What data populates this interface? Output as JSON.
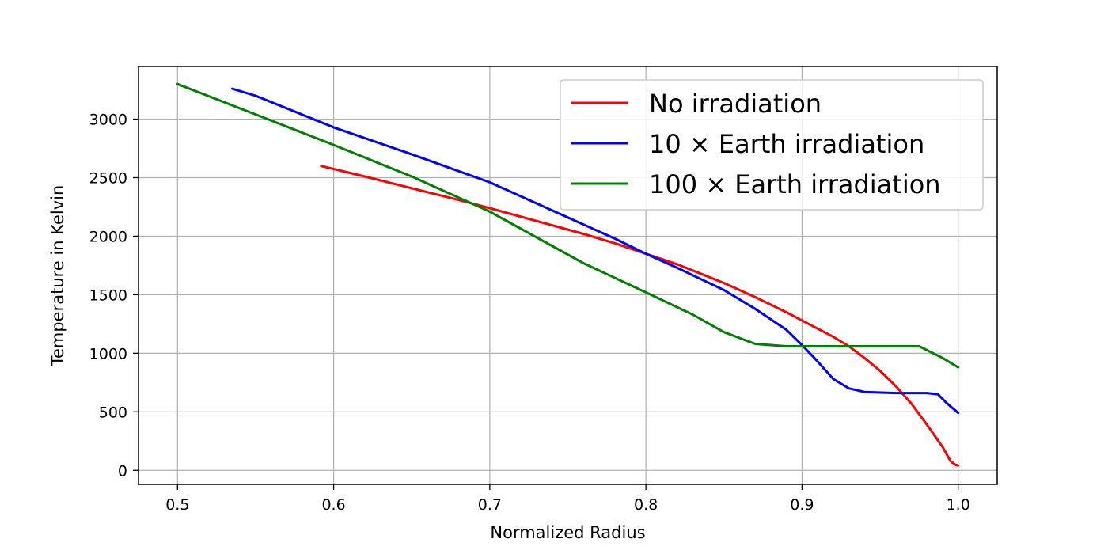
{
  "chart_data": {
    "type": "line",
    "title": "",
    "xlabel": "Normalized Radius",
    "ylabel": "Temperature in Kelvin",
    "xlim": [
      0.475,
      1.025
    ],
    "ylim": [
      -120,
      3450
    ],
    "grid": true,
    "legend_position": "top-right",
    "x_ticks": [
      0.5,
      0.6,
      0.7,
      0.8,
      0.9,
      1.0
    ],
    "x_tick_labels": [
      "0.5",
      "0.6",
      "0.7",
      "0.8",
      "0.9",
      "1.0"
    ],
    "y_ticks": [
      0,
      500,
      1000,
      1500,
      2000,
      2500,
      3000
    ],
    "y_tick_labels": [
      "0",
      "500",
      "1000",
      "1500",
      "2000",
      "2500",
      "3000"
    ],
    "series": [
      {
        "name": "No irradiation",
        "color": "#ff0000",
        "x": [
          0.592,
          0.62,
          0.65,
          0.68,
          0.7,
          0.73,
          0.76,
          0.78,
          0.8,
          0.82,
          0.85,
          0.87,
          0.89,
          0.9,
          0.92,
          0.93,
          0.94,
          0.95,
          0.96,
          0.97,
          0.98,
          0.99,
          0.995,
          0.998,
          1.0
        ],
        "y": [
          2600,
          2510,
          2410,
          2310,
          2240,
          2130,
          2020,
          1940,
          1850,
          1760,
          1600,
          1480,
          1350,
          1280,
          1140,
          1060,
          960,
          850,
          720,
          570,
          390,
          200,
          80,
          50,
          40
        ]
      },
      {
        "name": "10 × Earth irradiation",
        "color": "#0000ff",
        "x": [
          0.535,
          0.55,
          0.6,
          0.65,
          0.7,
          0.75,
          0.78,
          0.8,
          0.82,
          0.85,
          0.87,
          0.89,
          0.9,
          0.91,
          0.92,
          0.93,
          0.94,
          0.96,
          0.98,
          0.987,
          0.993,
          1.0
        ],
        "y": [
          3260,
          3200,
          2930,
          2700,
          2460,
          2160,
          1980,
          1850,
          1730,
          1540,
          1380,
          1200,
          1070,
          930,
          780,
          700,
          670,
          660,
          660,
          650,
          570,
          490
        ]
      },
      {
        "name": "100 × Earth irradiation",
        "color": "#008000",
        "x": [
          0.5,
          0.55,
          0.6,
          0.65,
          0.68,
          0.7,
          0.73,
          0.76,
          0.8,
          0.83,
          0.85,
          0.87,
          0.89,
          0.9,
          0.92,
          0.95,
          0.975,
          0.99,
          1.0
        ],
        "y": [
          3300,
          3040,
          2780,
          2510,
          2330,
          2210,
          1990,
          1770,
          1520,
          1330,
          1180,
          1080,
          1060,
          1060,
          1060,
          1060,
          1060,
          960,
          880
        ]
      }
    ]
  }
}
